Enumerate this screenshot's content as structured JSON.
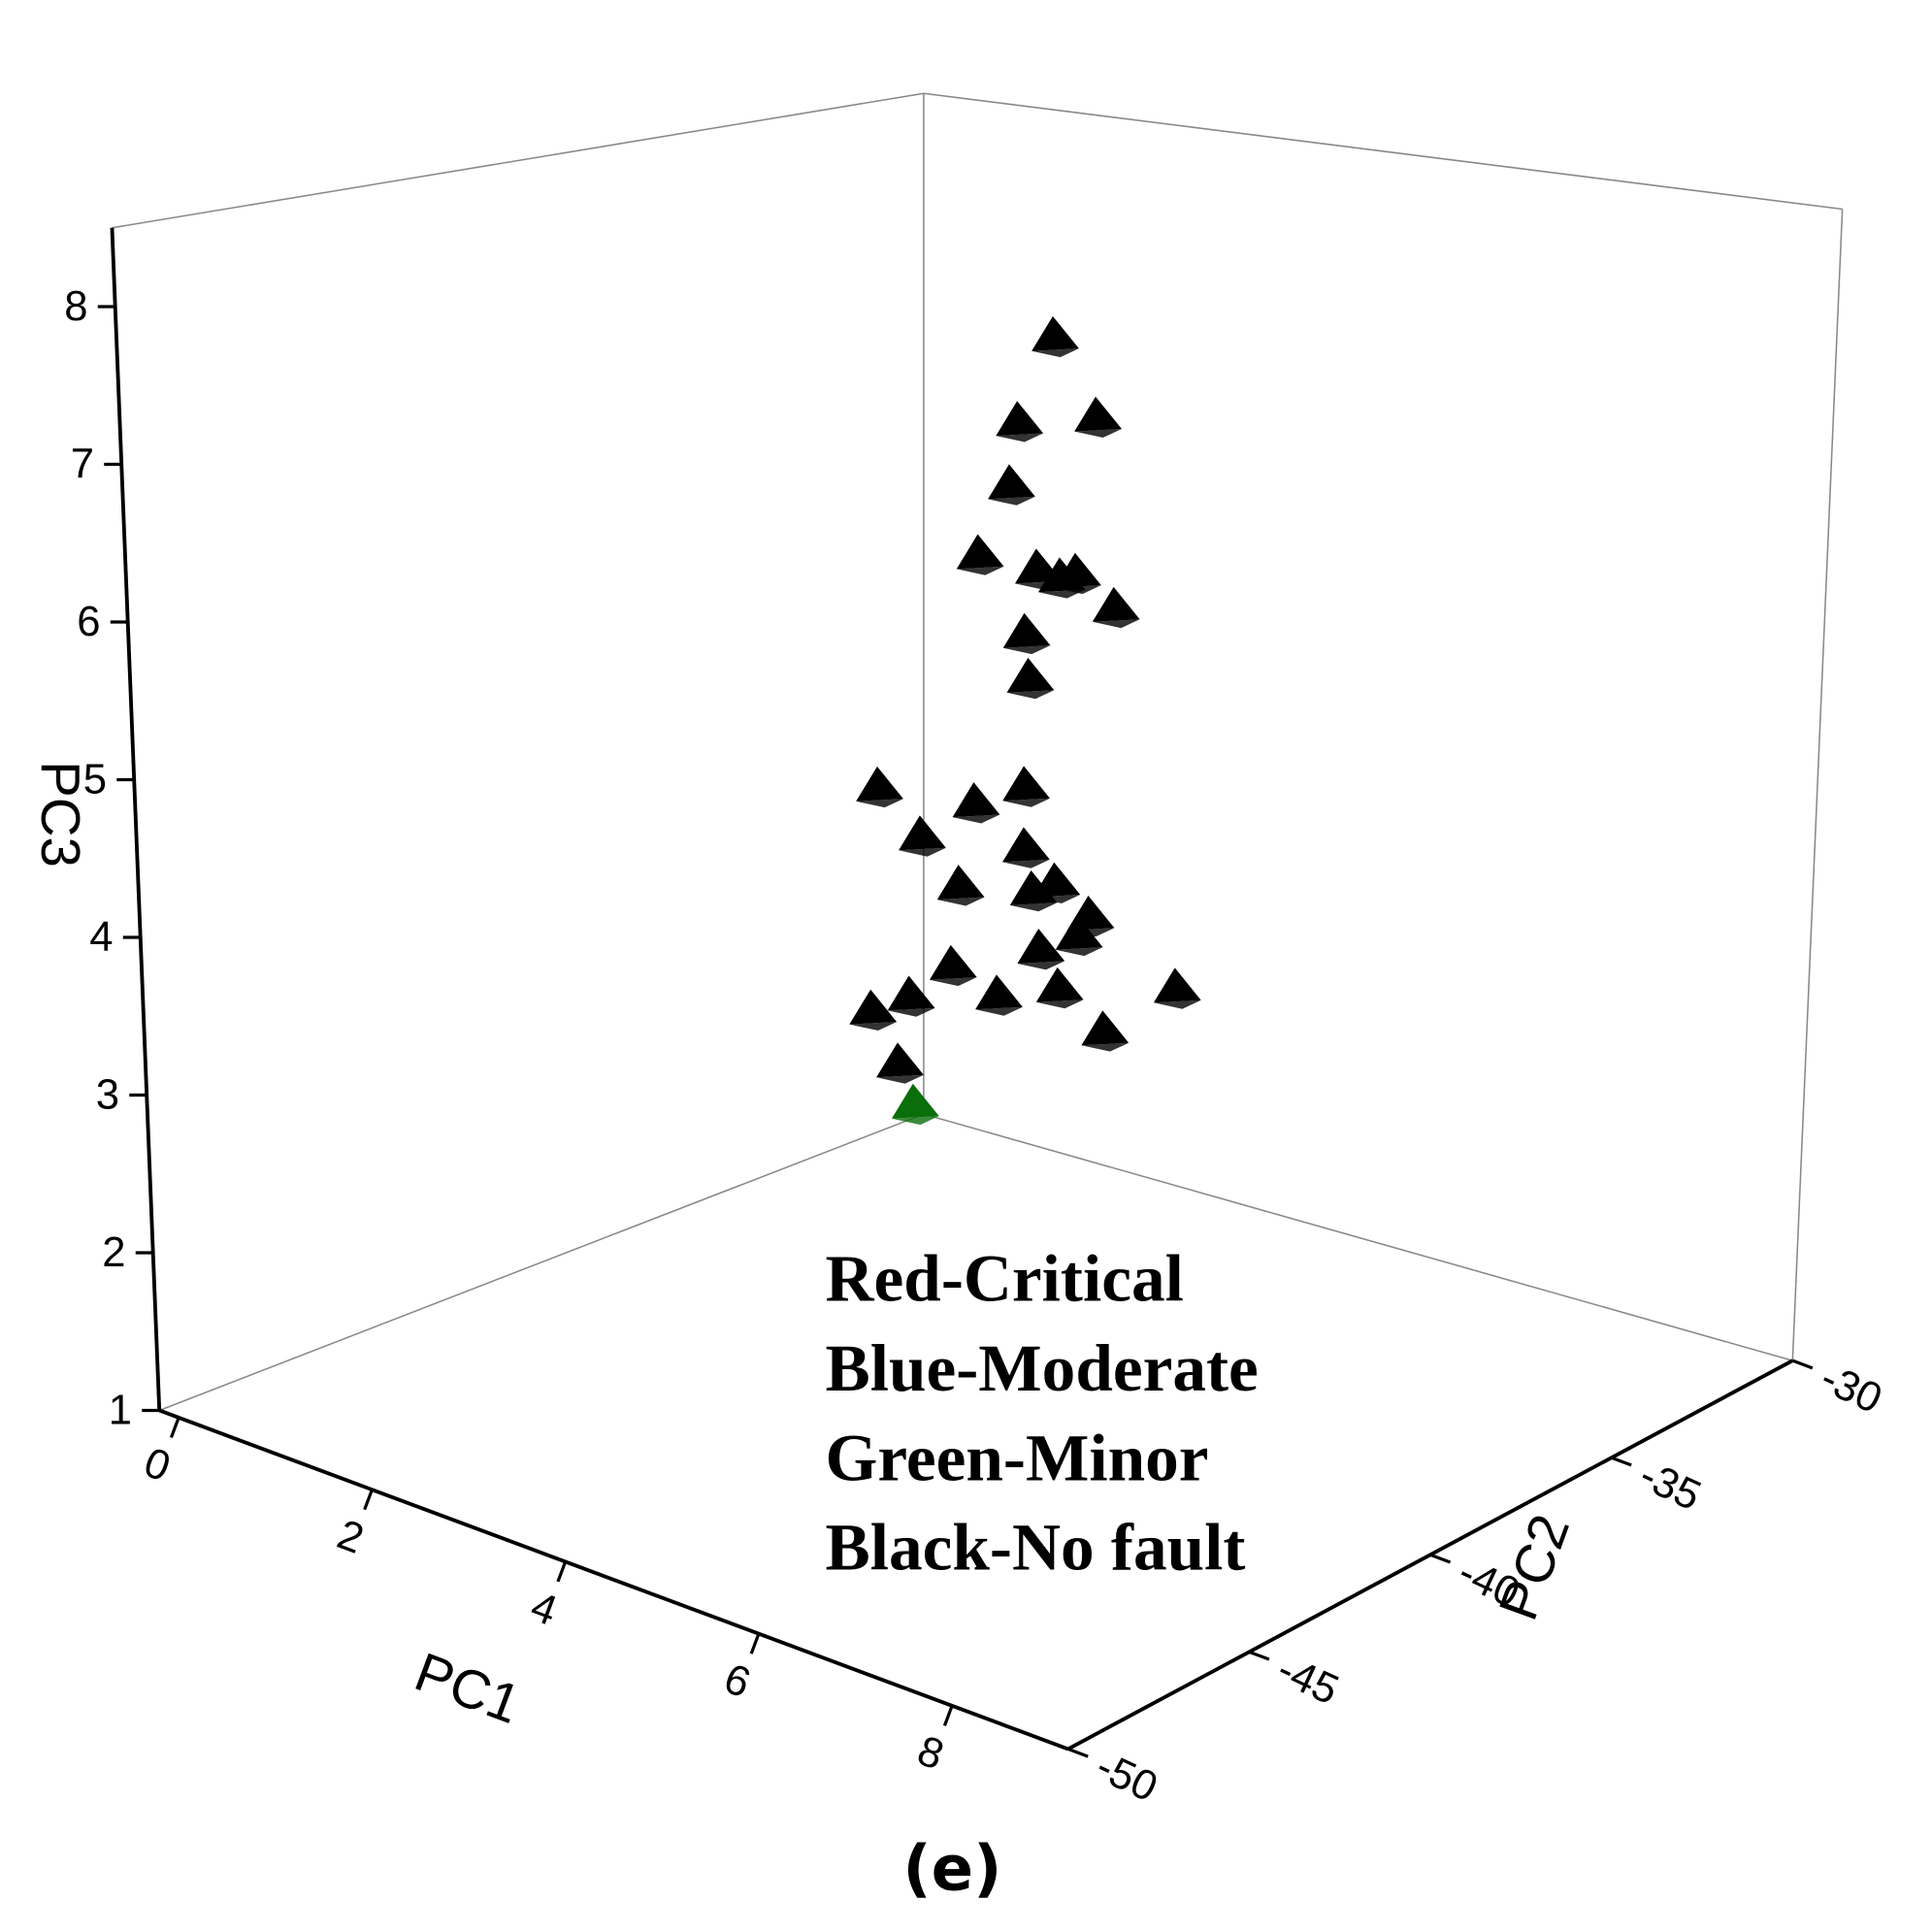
{
  "chart_data": {
    "type": "scatter3d",
    "xlabel": "PC1",
    "ylabel": "PC2",
    "zlabel": "PC3",
    "xlim": [
      -0.2,
      9.2
    ],
    "xticks": [
      0,
      2,
      4,
      6,
      8
    ],
    "ylim": [
      -50,
      -30
    ],
    "yticks": [
      -50,
      -45,
      -40,
      -35,
      -30
    ],
    "zlim": [
      1,
      8.5
    ],
    "zticks": [
      1,
      2,
      3,
      4,
      5,
      6,
      7,
      8
    ],
    "series": [
      {
        "color": "#000000",
        "x": [
          4,
          4,
          4,
          4,
          4,
          4,
          4,
          4,
          4,
          4,
          4,
          4,
          4,
          4,
          4,
          4,
          4,
          4,
          4,
          4,
          4,
          4,
          4,
          4,
          4,
          4,
          4,
          4,
          4,
          4
        ],
        "y": [
          -37.0,
          -35.9,
          -37.9,
          -38.1,
          -38.9,
          -37.4,
          -36.8,
          -36.4,
          -35.4,
          -37.7,
          -37.6,
          -41.5,
          -39.0,
          -37.7,
          -40.4,
          -37.7,
          -39.4,
          -36.9,
          -37.5,
          -36.0,
          -36.3,
          -37.3,
          -39.6,
          -33.7,
          -36.8,
          -38.4,
          -40.7,
          -41.7,
          -35.6,
          -41.0
        ],
        "z": [
          7.6,
          7.0,
          7.1,
          6.7,
          6.3,
          6.1,
          6.0,
          6.0,
          5.7,
          5.7,
          5.4,
          5.0,
          4.7,
          4.7,
          4.6,
          4.3,
          4.2,
          4.0,
          4.0,
          3.7,
          3.6,
          3.6,
          3.7,
          3.0,
          3.3,
          3.4,
          3.6,
          3.6,
          2.9,
          3.2
        ]
      },
      {
        "color": "#0a6e0a",
        "x": [
          4
        ],
        "y": [
          -40.6
        ],
        "z": [
          2.9
        ]
      }
    ],
    "annotations": [
      "Red-Critical",
      "Blue-Moderate",
      "Green-Minor",
      "Black-No fault"
    ],
    "caption": "(e)"
  }
}
